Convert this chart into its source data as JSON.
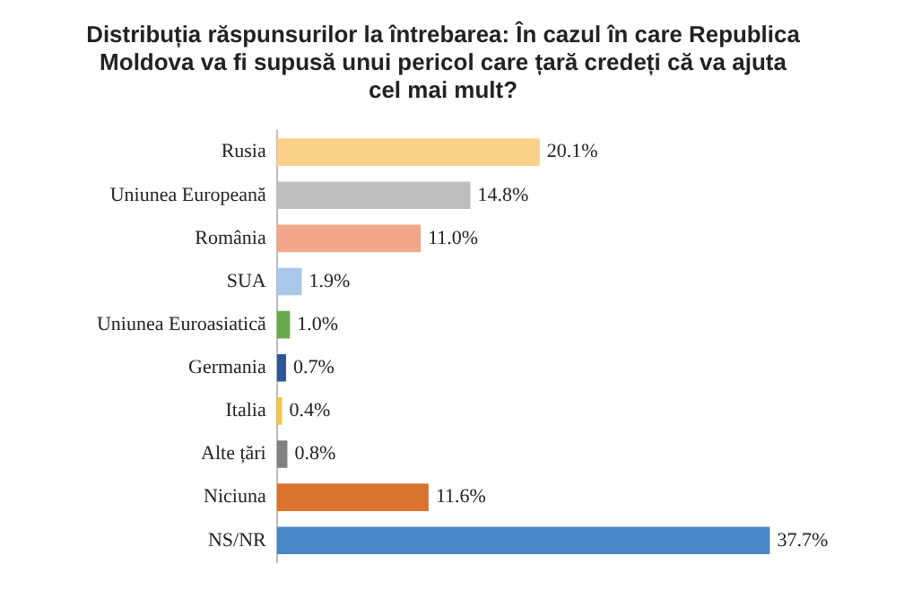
{
  "chart_data": {
    "type": "bar",
    "orientation": "horizontal",
    "title": "Distribuția răspunsurilor la întrebarea: În cazul în care Republica Moldova va fi supusă unui pericol care țară credeți că va ajuta cel mai mult?",
    "categories": [
      "Rusia",
      "Uniunea Europeană",
      "România",
      "SUA",
      "Uniunea Euroasiatică",
      "Germania",
      "Italia",
      "Alte țări",
      "Niciuna",
      "NS/NR"
    ],
    "values": [
      20.1,
      14.8,
      11.0,
      1.9,
      1.0,
      0.7,
      0.4,
      0.8,
      11.6,
      37.7
    ],
    "value_labels": [
      "20.1%",
      "14.8%",
      "11.0%",
      "1.9%",
      "1.0%",
      "0.7%",
      "0.4%",
      "0.8%",
      "11.6%",
      "37.7%"
    ],
    "colors": [
      "#fdd08a",
      "#bfbfbf",
      "#f2a68a",
      "#a9c8ea",
      "#6aa84f",
      "#2f5597",
      "#f4c842",
      "#808080",
      "#d9732e",
      "#4a86c5"
    ],
    "legend": false,
    "tick_labels": "y"
  }
}
